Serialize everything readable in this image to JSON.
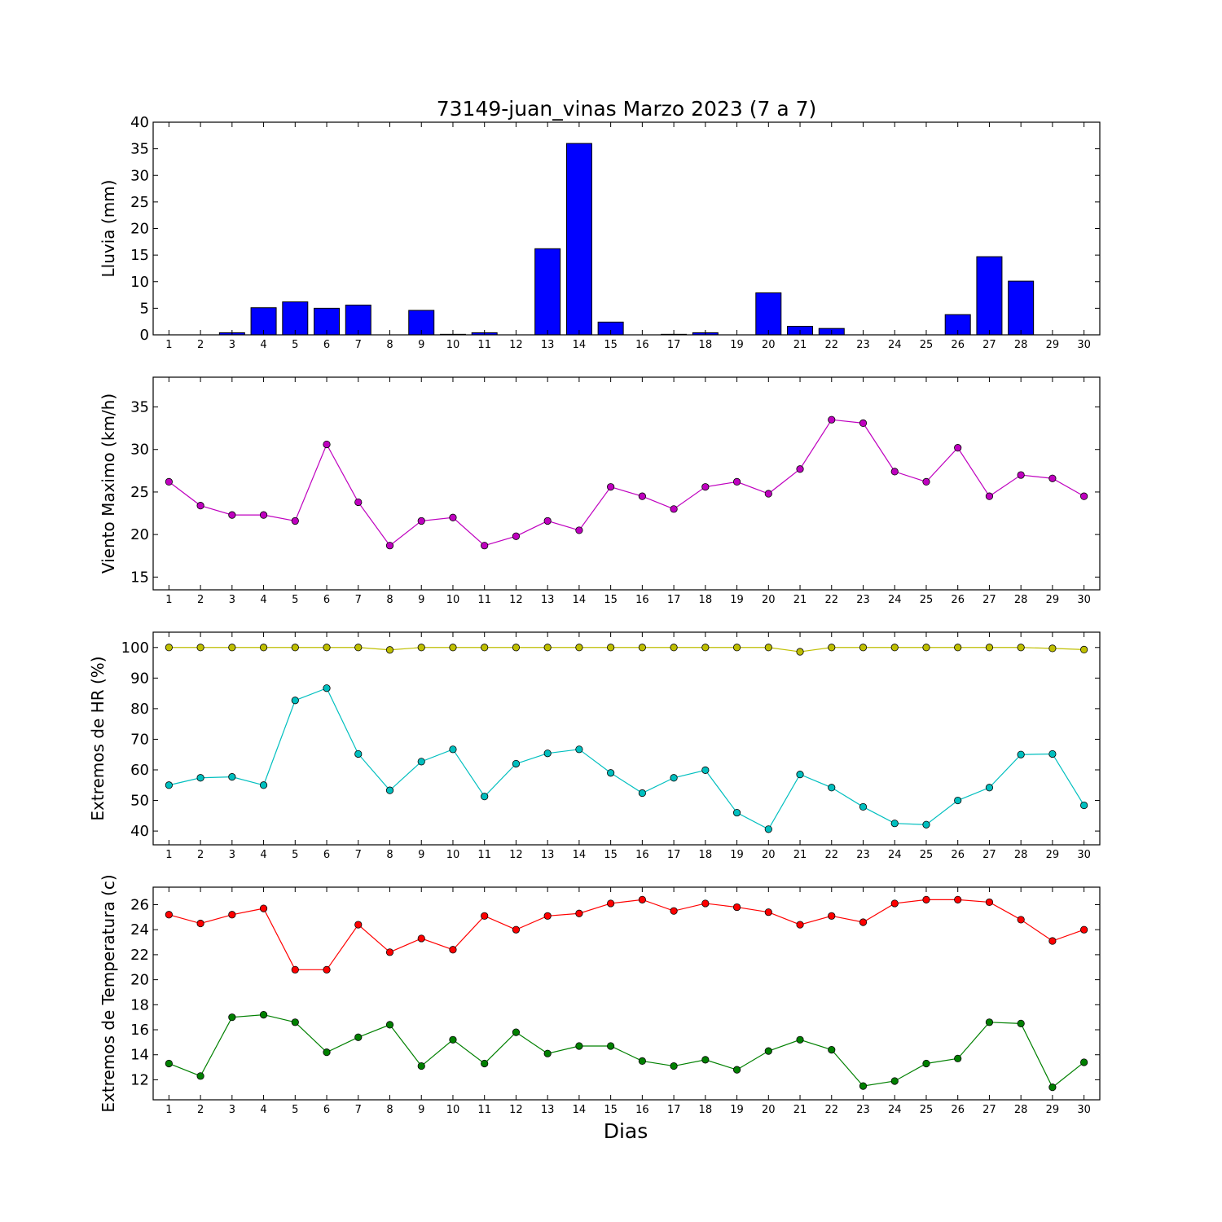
{
  "title": "73149-juan_vinas Marzo 2023  (7 a 7)",
  "xlabel": "Dias",
  "chart_data": [
    {
      "type": "bar",
      "ylabel": "Lluvia (mm)",
      "ylim": [
        0,
        40
      ],
      "yticks": [
        0,
        5,
        10,
        15,
        20,
        25,
        30,
        35,
        40
      ],
      "categories": [
        1,
        2,
        3,
        4,
        5,
        6,
        7,
        8,
        9,
        10,
        11,
        12,
        13,
        14,
        15,
        16,
        17,
        18,
        19,
        20,
        21,
        22,
        23,
        24,
        25,
        26,
        27,
        28,
        29,
        30
      ],
      "values": [
        0,
        0,
        0.4,
        5.1,
        6.2,
        5.0,
        5.6,
        0,
        4.6,
        0.1,
        0.4,
        0,
        16.2,
        36.0,
        2.4,
        0,
        0.1,
        0.4,
        0,
        7.9,
        1.6,
        1.2,
        0,
        0,
        0,
        3.8,
        14.7,
        10.1,
        0,
        0
      ],
      "color": "#0000ff"
    },
    {
      "type": "line",
      "ylabel": "Viento Maximo (km/h)",
      "ylim": [
        13.5,
        38.5
      ],
      "yticks": [
        15,
        20,
        25,
        30,
        35
      ],
      "x": [
        1,
        2,
        3,
        4,
        5,
        6,
        7,
        8,
        9,
        10,
        11,
        12,
        13,
        14,
        15,
        16,
        17,
        18,
        19,
        20,
        21,
        22,
        23,
        24,
        25,
        26,
        27,
        28,
        29,
        30
      ],
      "series": [
        {
          "values": [
            26.2,
            23.4,
            22.3,
            22.3,
            21.6,
            30.6,
            23.8,
            18.7,
            21.6,
            22.0,
            18.7,
            19.8,
            21.6,
            20.5,
            25.6,
            24.5,
            23.0,
            25.6,
            26.2,
            24.8,
            27.7,
            33.5,
            33.1,
            27.4,
            26.2,
            30.2,
            24.5,
            27.0,
            26.6,
            24.5
          ],
          "color": "#bf00bf"
        }
      ]
    },
    {
      "type": "line",
      "ylabel": "Extremos de HR (%)",
      "ylim": [
        35.5,
        105
      ],
      "yticks": [
        40,
        50,
        60,
        70,
        80,
        90,
        100
      ],
      "x": [
        1,
        2,
        3,
        4,
        5,
        6,
        7,
        8,
        9,
        10,
        11,
        12,
        13,
        14,
        15,
        16,
        17,
        18,
        19,
        20,
        21,
        22,
        23,
        24,
        25,
        26,
        27,
        28,
        29,
        30
      ],
      "series": [
        {
          "values": [
            100,
            100,
            100,
            100,
            100,
            100,
            100,
            99.2,
            100,
            100,
            100,
            100,
            100,
            100,
            100,
            100,
            100,
            100,
            100,
            100,
            98.6,
            100,
            100,
            100,
            100,
            100,
            100,
            100,
            99.7,
            99.3
          ],
          "color": "#bfbf00"
        },
        {
          "values": [
            55.0,
            57.4,
            57.7,
            55.0,
            82.7,
            86.7,
            65.2,
            53.3,
            62.7,
            66.7,
            51.3,
            62.0,
            65.4,
            66.7,
            59.0,
            52.4,
            57.4,
            59.9,
            46.0,
            40.6,
            58.5,
            54.2,
            47.9,
            42.5,
            42.1,
            50.0,
            54.2,
            65.0,
            65.2,
            48.4
          ],
          "color": "#00bfbf"
        }
      ]
    },
    {
      "type": "line",
      "ylabel": "Extremos de Temperatura (c)",
      "ylim": [
        10.4,
        27.4
      ],
      "yticks": [
        12,
        14,
        16,
        18,
        20,
        22,
        24,
        26
      ],
      "x": [
        1,
        2,
        3,
        4,
        5,
        6,
        7,
        8,
        9,
        10,
        11,
        12,
        13,
        14,
        15,
        16,
        17,
        18,
        19,
        20,
        21,
        22,
        23,
        24,
        25,
        26,
        27,
        28,
        29,
        30
      ],
      "series": [
        {
          "values": [
            25.2,
            24.5,
            25.2,
            25.7,
            20.8,
            20.8,
            24.4,
            22.2,
            23.3,
            22.4,
            25.1,
            24.0,
            25.1,
            25.3,
            26.1,
            26.4,
            25.5,
            26.1,
            25.8,
            25.4,
            24.4,
            25.1,
            24.6,
            26.1,
            26.4,
            26.4,
            26.2,
            24.8,
            23.1,
            24.0
          ],
          "color": "#ff0000"
        },
        {
          "values": [
            13.3,
            12.3,
            17.0,
            17.2,
            16.6,
            14.2,
            15.4,
            16.4,
            13.1,
            15.2,
            13.3,
            15.8,
            14.1,
            14.7,
            14.7,
            13.5,
            13.1,
            13.6,
            12.8,
            14.3,
            15.2,
            14.4,
            11.5,
            11.9,
            13.3,
            13.7,
            16.6,
            16.5,
            11.4,
            13.4
          ],
          "color": "#008000"
        }
      ]
    }
  ]
}
